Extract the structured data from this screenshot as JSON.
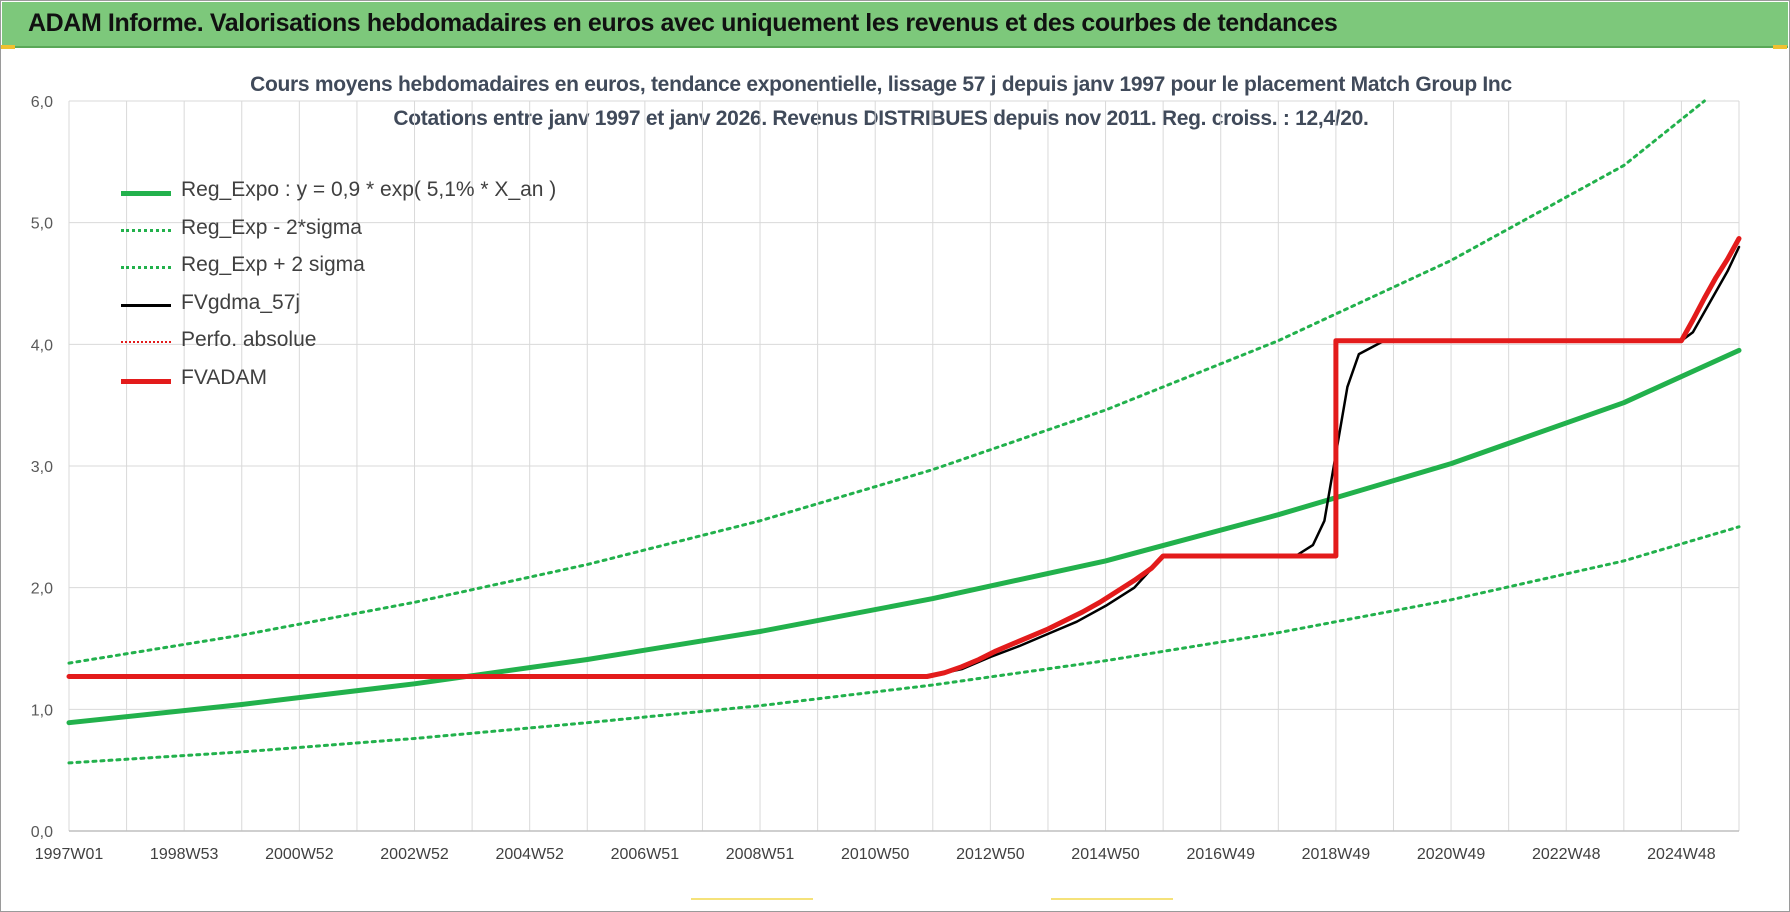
{
  "banner": {
    "title": "ADAM Informe. Valorisations hebdomadaires en euros avec uniquement les revenus et des courbes de tendances"
  },
  "colors": {
    "banner_bg": "#7dc87b",
    "reg_green": "#22b14c",
    "fvadam_red": "#e31b1b",
    "fvgdma_black": "#000000",
    "grid": "#d9d9d9"
  },
  "chart_data": {
    "type": "line",
    "title": "Cours moyens hebdomadaires en euros, tendance exponentielle, lissage 57 j depuis janv 1997  pour le placement Match Group Inc",
    "subtitle": "Cotations entre janv 1997 et janv 2026. Revenus DISTRIBUES depuis nov 2011.  Reg. croiss. : 12,4/20.",
    "xlabel": "",
    "ylabel": "",
    "ylim": [
      0,
      6
    ],
    "xlim": [
      1997.0,
      2026.0
    ],
    "y_ticks": [
      "0,0",
      "1,0",
      "2,0",
      "3,0",
      "4,0",
      "5,0",
      "6,0"
    ],
    "x_ticks": [
      {
        "label": "1997W01",
        "x": 1997.0
      },
      {
        "label": "1998W53",
        "x": 1999.0
      },
      {
        "label": "2000W52",
        "x": 2001.0
      },
      {
        "label": "2002W52",
        "x": 2003.0
      },
      {
        "label": "2004W52",
        "x": 2005.0
      },
      {
        "label": "2006W51",
        "x": 2007.0
      },
      {
        "label": "2008W51",
        "x": 2009.0
      },
      {
        "label": "2010W50",
        "x": 2011.0
      },
      {
        "label": "2012W50",
        "x": 2013.0
      },
      {
        "label": "2014W50",
        "x": 2015.0
      },
      {
        "label": "2016W49",
        "x": 2017.0
      },
      {
        "label": "2018W49",
        "x": 2019.0
      },
      {
        "label": "2020W49",
        "x": 2021.0
      },
      {
        "label": "2022W48",
        "x": 2023.0
      },
      {
        "label": "2024W48",
        "x": 2025.0
      }
    ],
    "grid": true,
    "legend_position": "top-left",
    "series": [
      {
        "name": "Reg_Expo : y = 0,9 * exp( 5,1% *  X_an )",
        "style": "solid-thick",
        "color": "#22b14c",
        "x": [
          1997,
          2000,
          2003,
          2006,
          2009,
          2012,
          2015,
          2018,
          2021,
          2024,
          2026
        ],
        "y": [
          0.89,
          1.04,
          1.21,
          1.41,
          1.64,
          1.91,
          2.22,
          2.6,
          3.02,
          3.52,
          3.95
        ]
      },
      {
        "name": "Reg_Exp - 2*sigma",
        "style": "dotted",
        "color": "#22b14c",
        "x": [
          1997,
          2000,
          2003,
          2006,
          2009,
          2012,
          2015,
          2018,
          2021,
          2024,
          2026
        ],
        "y": [
          0.56,
          0.65,
          0.76,
          0.89,
          1.03,
          1.2,
          1.4,
          1.63,
          1.9,
          2.22,
          2.5
        ]
      },
      {
        "name": "Reg_Exp + 2 sigma",
        "style": "dotted",
        "color": "#22b14c",
        "x": [
          1997,
          2000,
          2003,
          2006,
          2009,
          2012,
          2015,
          2018,
          2021,
          2024,
          2025.4
        ],
        "y": [
          1.38,
          1.61,
          1.88,
          2.19,
          2.55,
          2.97,
          3.46,
          4.03,
          4.69,
          5.47,
          6.0
        ]
      },
      {
        "name": "FVgdma_57j",
        "style": "solid",
        "color": "#000000",
        "x": [
          1997.0,
          2011.9,
          2012.5,
          2013.0,
          2013.5,
          2014.0,
          2014.5,
          2015.0,
          2015.5,
          2016.0,
          2018.3,
          2018.6,
          2018.8,
          2019.0,
          2019.2,
          2019.4,
          2019.8,
          2020.0,
          2025.0,
          2025.2,
          2025.5,
          2025.8,
          2026.0
        ],
        "y": [
          1.27,
          1.27,
          1.33,
          1.43,
          1.52,
          1.62,
          1.72,
          1.85,
          2.0,
          2.26,
          2.26,
          2.35,
          2.55,
          3.1,
          3.65,
          3.92,
          4.02,
          4.03,
          4.03,
          4.1,
          4.35,
          4.6,
          4.8
        ]
      },
      {
        "name": "Perfo. absolue",
        "style": "dotted",
        "color": "#e31b1b",
        "x": [],
        "y": []
      },
      {
        "name": "FVADAM",
        "style": "solid-thick",
        "color": "#e31b1b",
        "x": [
          1997.0,
          2011.9,
          2012.2,
          2012.5,
          2012.8,
          2013.1,
          2013.4,
          2013.7,
          2014.0,
          2014.3,
          2014.6,
          2014.9,
          2015.2,
          2015.5,
          2015.8,
          2016.0,
          2019.0,
          2019.0,
          2025.0,
          2025.2,
          2025.4,
          2025.6,
          2025.8,
          2026.0
        ],
        "y": [
          1.27,
          1.27,
          1.3,
          1.35,
          1.41,
          1.48,
          1.54,
          1.6,
          1.66,
          1.73,
          1.8,
          1.88,
          1.97,
          2.06,
          2.16,
          2.26,
          2.26,
          4.03,
          4.03,
          4.2,
          4.38,
          4.55,
          4.7,
          4.87
        ]
      }
    ]
  }
}
